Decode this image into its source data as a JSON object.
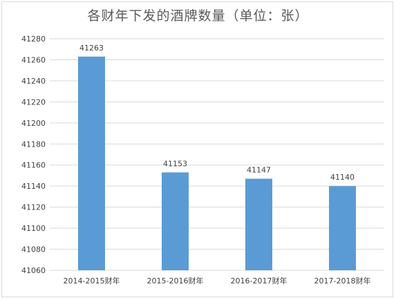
{
  "chart_data": {
    "type": "bar",
    "title": "各财年下发的酒牌数量（单位：张）",
    "categories": [
      "2014-2015财年",
      "2015-2016财年",
      "2016-2017财年",
      "2017-2018财年"
    ],
    "values": [
      41263,
      41153,
      41147,
      41140
    ],
    "data_labels": [
      "41263",
      "41153",
      "41147",
      "41140"
    ],
    "ylim": [
      41060,
      41280
    ],
    "yticks": [
      41060,
      41080,
      41100,
      41120,
      41140,
      41160,
      41180,
      41200,
      41220,
      41240,
      41260,
      41280
    ],
    "xlabel": "",
    "ylabel": "",
    "grid": true,
    "legend": "none",
    "bar_color": "#5b9bd5",
    "grid_color": "#d9d9d9",
    "text_color": "#404040"
  }
}
